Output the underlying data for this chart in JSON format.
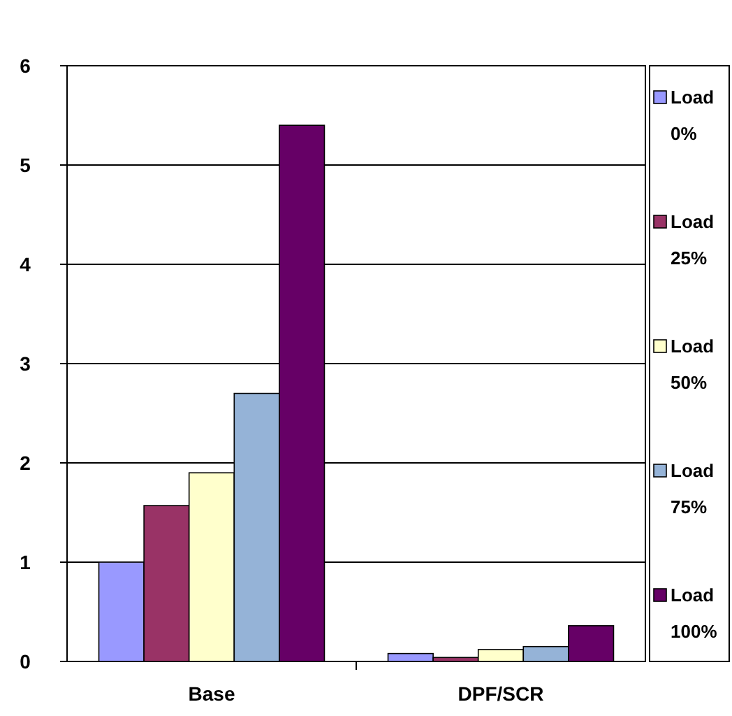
{
  "chart_data": {
    "type": "bar",
    "categories": [
      "Base",
      "DPF/SCR"
    ],
    "series": [
      {
        "name": "Load 0%",
        "color": "#9999ff",
        "values": [
          1.0,
          0.08
        ]
      },
      {
        "name": "Load 25%",
        "color": "#993366",
        "values": [
          1.57,
          0.04
        ]
      },
      {
        "name": "Load 50%",
        "color": "#ffffcc",
        "values": [
          1.9,
          0.12
        ]
      },
      {
        "name": "Load 75%",
        "color": "#95b3d7",
        "values": [
          2.7,
          0.15
        ]
      },
      {
        "name": "Load 100%",
        "color": "#660066",
        "values": [
          5.4,
          0.36
        ]
      }
    ],
    "ylim": [
      0,
      6
    ],
    "yticks": [
      0,
      1,
      2,
      3,
      4,
      5,
      6
    ],
    "grid": "y",
    "legend": "right"
  }
}
